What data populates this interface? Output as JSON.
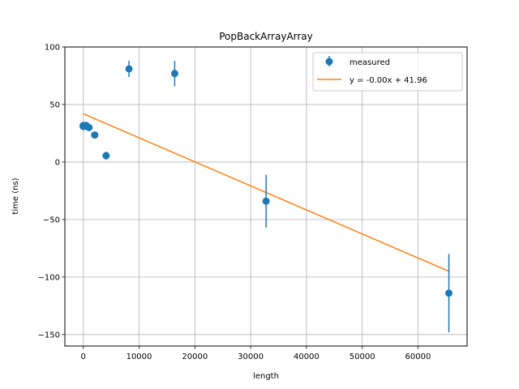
{
  "chart_data": {
    "type": "scatter",
    "title": "PopBackArrayArray",
    "xlabel": "length",
    "ylabel": "time (ns)",
    "xlim": [
      -3300,
      68800
    ],
    "ylim": [
      -160,
      100
    ],
    "xticks": [
      0,
      10000,
      20000,
      30000,
      40000,
      50000,
      60000
    ],
    "xtick_labels": [
      "0",
      "10000",
      "20000",
      "30000",
      "40000",
      "50000",
      "60000"
    ],
    "yticks": [
      -150,
      -100,
      -50,
      0,
      50,
      100
    ],
    "ytick_labels": [
      "−150",
      "−100",
      "−50",
      "0",
      "50",
      "100"
    ],
    "grid": true,
    "legend_position": "top-right",
    "series": [
      {
        "name": "measured",
        "kind": "errorbar",
        "color": "#1f77b4",
        "points": [
          {
            "x": 1,
            "y": 31.0,
            "err": 1.5
          },
          {
            "x": 2,
            "y": 31.3,
            "err": 1.5
          },
          {
            "x": 4,
            "y": 31.5,
            "err": 1.5
          },
          {
            "x": 8,
            "y": 31.2,
            "err": 1.5
          },
          {
            "x": 16,
            "y": 31.8,
            "err": 1.5
          },
          {
            "x": 32,
            "y": 31.0,
            "err": 1.5
          },
          {
            "x": 64,
            "y": 31.5,
            "err": 1.5
          },
          {
            "x": 128,
            "y": 31.2,
            "err": 1.5
          },
          {
            "x": 256,
            "y": 31.0,
            "err": 1.5
          },
          {
            "x": 512,
            "y": 31.8,
            "err": 1.5
          },
          {
            "x": 1024,
            "y": 30.0,
            "err": 1.5
          },
          {
            "x": 2048,
            "y": 23.5,
            "err": 1.5
          },
          {
            "x": 4096,
            "y": 5.5,
            "err": 3.5
          },
          {
            "x": 8192,
            "y": 81.0,
            "err": 7.0
          },
          {
            "x": 16384,
            "y": 77.0,
            "err": 11.0
          },
          {
            "x": 32768,
            "y": -34.0,
            "err": 23.0
          },
          {
            "x": 65536,
            "y": -114.0,
            "err": 34.0
          }
        ]
      },
      {
        "name": "y = -0.00x + 41.96",
        "kind": "line",
        "color": "#ff7f0e",
        "x": [
          1,
          65536
        ],
        "y": [
          41.96,
          -95.0
        ]
      }
    ]
  }
}
